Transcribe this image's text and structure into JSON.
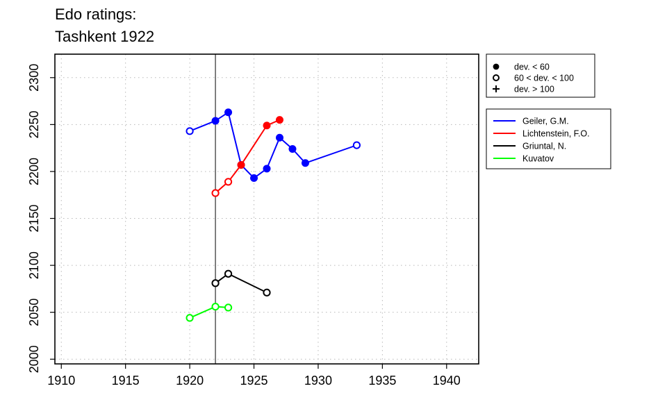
{
  "chart_data": {
    "type": "line",
    "title_lines": [
      "Edo ratings:",
      "Tashkent 1922"
    ],
    "xlabel": "",
    "ylabel": "",
    "xlim": [
      1909.5,
      1942.5
    ],
    "ylim": [
      1995,
      2325
    ],
    "x_ticks": [
      1910,
      1915,
      1920,
      1925,
      1930,
      1935,
      1940
    ],
    "y_ticks": [
      2000,
      2050,
      2100,
      2150,
      2200,
      2250,
      2300
    ],
    "grid": true,
    "event_line_x": 1922,
    "marker_legend": {
      "placement": "top-right-outside",
      "entries": [
        {
          "symbol": "filled-circle",
          "label": "dev. < 60"
        },
        {
          "symbol": "open-circle",
          "label": "60 < dev. < 100"
        },
        {
          "symbol": "plus",
          "label": "dev. > 100"
        }
      ]
    },
    "series_legend": {
      "placement": "right-outside"
    },
    "series": [
      {
        "name": "Geiler, G.M.",
        "color": "#0000ff",
        "points": [
          {
            "x": 1920,
            "y": 2243,
            "marker": "open"
          },
          {
            "x": 1922,
            "y": 2254,
            "marker": "filled"
          },
          {
            "x": 1923,
            "y": 2263,
            "marker": "filled"
          },
          {
            "x": 1924,
            "y": 2207,
            "marker": "filled"
          },
          {
            "x": 1925,
            "y": 2193,
            "marker": "filled"
          },
          {
            "x": 1926,
            "y": 2203,
            "marker": "filled"
          },
          {
            "x": 1927,
            "y": 2236,
            "marker": "filled"
          },
          {
            "x": 1928,
            "y": 2224,
            "marker": "filled"
          },
          {
            "x": 1929,
            "y": 2209,
            "marker": "filled"
          },
          {
            "x": 1933,
            "y": 2228,
            "marker": "open"
          }
        ]
      },
      {
        "name": "Lichtenstein, F.O.",
        "color": "#ff0000",
        "points": [
          {
            "x": 1922,
            "y": 2177,
            "marker": "open"
          },
          {
            "x": 1923,
            "y": 2189,
            "marker": "open"
          },
          {
            "x": 1924,
            "y": 2207,
            "marker": "filled"
          },
          {
            "x": 1926,
            "y": 2249,
            "marker": "filled"
          },
          {
            "x": 1927,
            "y": 2255,
            "marker": "filled"
          }
        ]
      },
      {
        "name": "Griuntal, N.",
        "color": "#000000",
        "points": [
          {
            "x": 1922,
            "y": 2081,
            "marker": "open"
          },
          {
            "x": 1923,
            "y": 2091,
            "marker": "open"
          },
          {
            "x": 1926,
            "y": 2071,
            "marker": "open"
          }
        ]
      },
      {
        "name": "Kuvatov",
        "color": "#00ff00",
        "points": [
          {
            "x": 1920,
            "y": 2044,
            "marker": "open"
          },
          {
            "x": 1922,
            "y": 2056,
            "marker": "open"
          },
          {
            "x": 1923,
            "y": 2055,
            "marker": "open"
          }
        ]
      }
    ]
  }
}
